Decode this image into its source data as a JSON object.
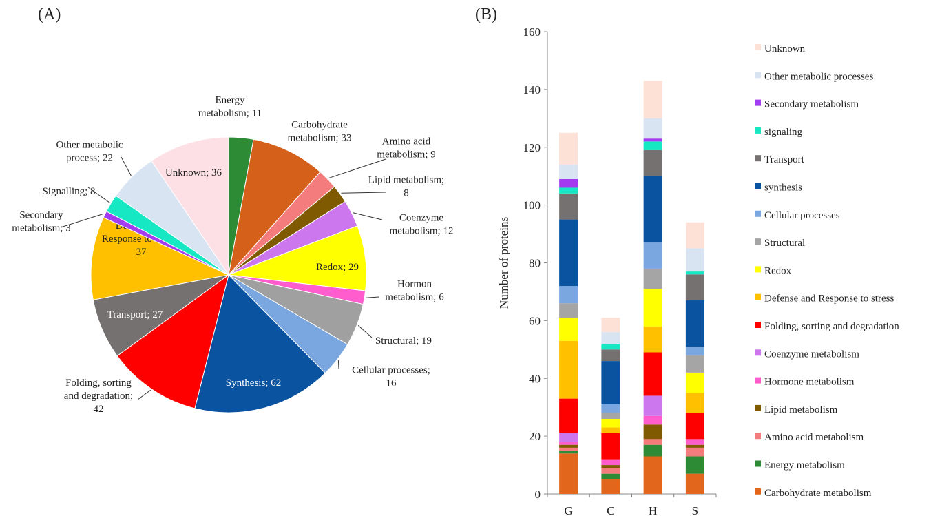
{
  "panels": {
    "a": "(A)",
    "b": "(B)"
  },
  "chart_data": [
    {
      "type": "pie",
      "title": "",
      "slices": [
        {
          "name": "Energy metabolism",
          "value": 11,
          "color": "#2e8b35",
          "label_lines": [
            "Energy",
            "metabolism; 11"
          ]
        },
        {
          "name": "Carbohydrate metabolism",
          "value": 33,
          "color": "#d4601a",
          "label_lines": [
            "Carbohydrate",
            "metabolism; 33"
          ]
        },
        {
          "name": "Amino acid metabolism",
          "value": 9,
          "color": "#f47c7c",
          "label_lines": [
            "Amino acid",
            "metabolism; 9"
          ]
        },
        {
          "name": "Lipid metabolism",
          "value": 8,
          "color": "#7f5a00",
          "label_lines": [
            "Lipid metabolism;",
            "8"
          ]
        },
        {
          "name": "Coenzyme metabolism",
          "value": 12,
          "color": "#cc77ee",
          "label_lines": [
            "Coenzyme",
            "metabolism; 12"
          ]
        },
        {
          "name": "Redox",
          "value": 29,
          "color": "#ffff00",
          "label_lines": [
            "Redox; 29"
          ]
        },
        {
          "name": "Hormon metabolism",
          "value": 6,
          "color": "#ff5ccd",
          "label_lines": [
            "Hormon",
            "metabolism; 6"
          ]
        },
        {
          "name": "Structural",
          "value": 19,
          "color": "#a0a0a0",
          "label_lines": [
            "Structural; 19"
          ]
        },
        {
          "name": "Cellular processes",
          "value": 16,
          "color": "#7aa7e0",
          "label_lines": [
            "Cellular processes;",
            "16"
          ]
        },
        {
          "name": "Synthesis",
          "value": 62,
          "color": "#0a53a0",
          "label_lines": [
            "Synthesis; 62"
          ]
        },
        {
          "name": "Folding, sorting and degradation",
          "value": 42,
          "color": "#ff0000",
          "label_lines": [
            "Folding, sorting",
            "and degradation;",
            "42"
          ]
        },
        {
          "name": "Transport",
          "value": 27,
          "color": "#757171",
          "label_lines": [
            "Transport; 27"
          ]
        },
        {
          "name": "Defense and Response to stress",
          "value": 37,
          "color": "#ffc000",
          "label_lines": [
            "Defense and",
            "Response to stress;",
            "37"
          ]
        },
        {
          "name": "Secondary metabolism",
          "value": 3,
          "color": "#a33cf0",
          "label_lines": [
            "Secondary",
            "metabolism; 3"
          ]
        },
        {
          "name": "Signalling",
          "value": 8,
          "color": "#17e8c4",
          "label_lines": [
            "Signalling; 8"
          ]
        },
        {
          "name": "Other metabolic process",
          "value": 22,
          "color": "#d9e4f3",
          "label_lines": [
            "Other metabolic",
            "process; 22"
          ]
        },
        {
          "name": "Unknown",
          "value": 36,
          "color": "#fde0e6",
          "label_lines": [
            "Unknown; 36"
          ]
        }
      ]
    },
    {
      "type": "bar",
      "stacked": true,
      "title": "",
      "xlabel": "",
      "ylabel": "Number of proteins",
      "ylim": [
        0,
        160
      ],
      "yticks": [
        0,
        20,
        40,
        60,
        80,
        100,
        120,
        140,
        160
      ],
      "categories": [
        "G",
        "C",
        "H",
        "S"
      ],
      "legend_position": "right",
      "series": [
        {
          "name": "Carbohydrate metabolism",
          "color": "#e2661b",
          "values": [
            14,
            5,
            13,
            7
          ]
        },
        {
          "name": "Energy metabolism",
          "color": "#2e8b35",
          "values": [
            1,
            2,
            4,
            6
          ]
        },
        {
          "name": "Amino acid metabolism",
          "color": "#f47c7c",
          "values": [
            1,
            2,
            2,
            3
          ]
        },
        {
          "name": "Lipid metabolism",
          "color": "#7f5a00",
          "values": [
            1,
            1,
            5,
            1
          ]
        },
        {
          "name": "Hormone metabolism",
          "color": "#ff5ccd",
          "values": [
            1,
            2,
            3,
            2
          ]
        },
        {
          "name": "Coenzyme metabolism",
          "color": "#cc77ee",
          "values": [
            3,
            0,
            7,
            0
          ]
        },
        {
          "name": "Folding, sorting and degradation",
          "color": "#ff0000",
          "values": [
            12,
            9,
            15,
            9
          ]
        },
        {
          "name": "Defense and Response to stress",
          "color": "#ffc000",
          "values": [
            20,
            2,
            9,
            7
          ]
        },
        {
          "name": "Redox",
          "color": "#ffff00",
          "values": [
            8,
            3,
            13,
            7
          ]
        },
        {
          "name": "Structural",
          "color": "#a5a5a5",
          "values": [
            5,
            2,
            7,
            6
          ]
        },
        {
          "name": "Cellular processes",
          "color": "#7aa7e0",
          "values": [
            6,
            3,
            9,
            3
          ]
        },
        {
          "name": "synthesis",
          "color": "#0a53a0",
          "values": [
            23,
            15,
            23,
            16
          ]
        },
        {
          "name": "Transport",
          "color": "#757171",
          "values": [
            9,
            4,
            9,
            9
          ]
        },
        {
          "name": "signaling",
          "color": "#17e8c4",
          "values": [
            2,
            2,
            3,
            1
          ]
        },
        {
          "name": "Secondary metabolism",
          "color": "#a33cf0",
          "values": [
            3,
            0,
            1,
            0
          ]
        },
        {
          "name": "Other metabolic processes",
          "color": "#d9e4f3",
          "values": [
            5,
            4,
            7,
            8
          ]
        },
        {
          "name": "Unknown",
          "color": "#fde0d6",
          "values": [
            11,
            5,
            13,
            9
          ]
        }
      ]
    }
  ]
}
